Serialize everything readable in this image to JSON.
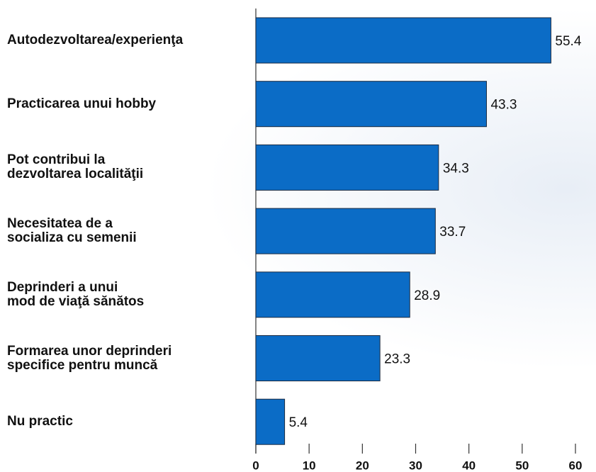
{
  "chart_data": {
    "type": "bar",
    "orientation": "horizontal",
    "categories": [
      "Autodezvoltarea/experienţa",
      "Practicarea unui hobby",
      "Pot contribui la\ndezvoltarea localităţii",
      "Necesitatea de a\nsocializa cu semenii",
      "Deprinderi a unui\nmod de viaţă sănătos",
      "Formarea unor deprinderi\nspecifice pentru muncă",
      "Nu practic"
    ],
    "values": [
      55.4,
      43.3,
      34.3,
      33.7,
      28.9,
      23.3,
      5.4
    ],
    "color": "#0b6cc6",
    "xlim": [
      0,
      60
    ],
    "xticks": [
      0,
      10,
      20,
      30,
      40,
      50,
      60
    ],
    "grid": false
  }
}
